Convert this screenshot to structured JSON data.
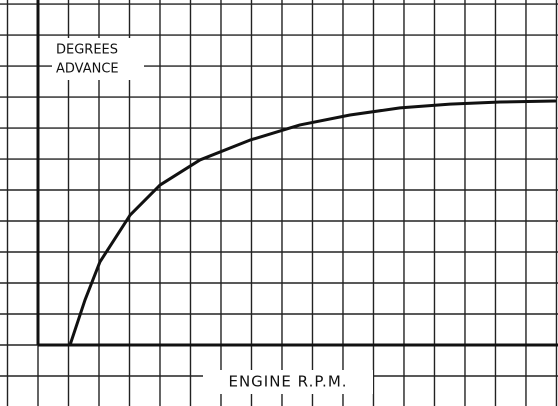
{
  "chart_data": {
    "type": "line",
    "xlabel": "ENGINE R.P.M.",
    "ylabel": [
      "DEGREES",
      "ADVANCE"
    ],
    "x": [
      1.05,
      1.54,
      2.03,
      3.02,
      4.0,
      5.31,
      6.95,
      8.59,
      10.23,
      11.87,
      13.51,
      15.15,
      16.95
    ],
    "series": [
      {
        "color": "#111111",
        "values": [
          0,
          1.45,
          2.68,
          4.19,
          5.16,
          5.97,
          6.61,
          7.1,
          7.42,
          7.65,
          7.77,
          7.84,
          7.87
        ]
      }
    ],
    "xlim": [
      -1.246,
      17.05
    ],
    "ylim": [
      -1.968,
      11.13
    ],
    "xticks": [
      -1,
      0,
      1,
      2,
      3,
      4,
      5,
      6,
      7,
      8,
      9,
      10,
      11,
      12,
      13,
      14,
      15,
      16,
      17
    ],
    "yticks": [
      -1,
      0,
      1,
      2,
      3,
      4,
      5,
      6,
      7,
      8,
      9,
      10,
      11
    ],
    "grid": true
  }
}
